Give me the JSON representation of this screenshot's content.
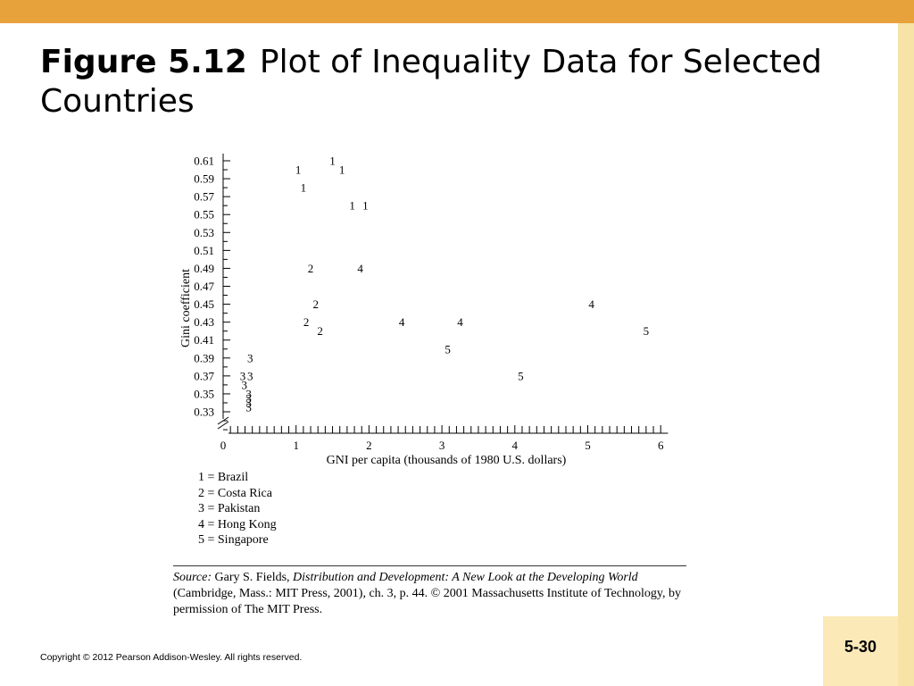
{
  "title": {
    "figure": "Figure 5.12",
    "text": "Plot of Inequality Data for Selected Countries"
  },
  "legend": [
    "1 = Brazil",
    "2 = Costa Rica",
    "3 = Pakistan",
    "4 = Hong Kong",
    "5 = Singapore"
  ],
  "source": {
    "label": "Source:",
    "author": "Gary S. Fields,",
    "book": "Distribution and Development: A New Look at the Developing World",
    "rest": "(Cambridge, Mass.: MIT Press, 2001), ch. 3, p. 44. © 2001 Massachusetts Institute of Technology, by permission of The MIT Press."
  },
  "copyright": "Copyright © 2012 Pearson Addison-Wesley. All rights reserved.",
  "page_number": "5-30",
  "colors": {
    "banner": "#e8a23c",
    "side_strip": "#f6e3a5",
    "page_box": "#fbe9b8"
  },
  "chart_data": {
    "type": "scatter",
    "xlabel": "GNI per capita (thousands of 1980 U.S. dollars)",
    "ylabel": "Gini coefficient",
    "x_ticks": [
      0,
      1,
      2,
      3,
      4,
      5,
      6
    ],
    "y_ticks": [
      0.33,
      0.35,
      0.37,
      0.39,
      0.41,
      0.43,
      0.45,
      0.47,
      0.49,
      0.51,
      0.53,
      0.55,
      0.57,
      0.59,
      0.61
    ],
    "xlim": [
      0,
      6.1
    ],
    "ylim": [
      0.32,
      0.62
    ],
    "axis_break": true,
    "series": [
      {
        "name": "1",
        "x": [
          1.5,
          1.03,
          1.1,
          1.63,
          1.77,
          1.95
        ],
        "y": [
          0.61,
          0.6,
          0.58,
          0.6,
          0.56,
          0.56
        ]
      },
      {
        "name": "2",
        "x": [
          1.2,
          1.27,
          1.14,
          1.33
        ],
        "y": [
          0.49,
          0.45,
          0.43,
          0.42
        ]
      },
      {
        "name": "3",
        "x": [
          0.37,
          0.27,
          0.37,
          0.29,
          0.35,
          0.35,
          0.35,
          0.35
        ],
        "y": [
          0.39,
          0.37,
          0.37,
          0.36,
          0.35,
          0.345,
          0.34,
          0.335
        ]
      },
      {
        "name": "4",
        "x": [
          1.88,
          2.45,
          3.25,
          5.05
        ],
        "y": [
          0.49,
          0.43,
          0.43,
          0.45
        ]
      },
      {
        "name": "5",
        "x": [
          3.08,
          4.08,
          5.8
        ],
        "y": [
          0.4,
          0.37,
          0.42
        ]
      }
    ]
  }
}
